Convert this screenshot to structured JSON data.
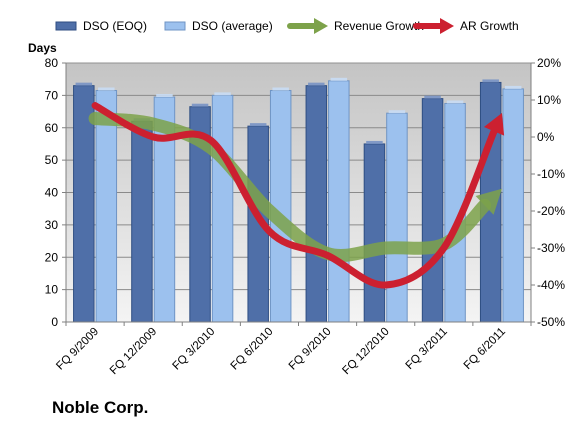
{
  "chart_data": {
    "type": "bar",
    "title": "Noble Corp.",
    "ylabel_left": "Days",
    "ylim_left": [
      0,
      80
    ],
    "yticks_left": [
      "0",
      "10",
      "20",
      "30",
      "40",
      "50",
      "60",
      "70",
      "80"
    ],
    "ylim_right": [
      -0.5,
      0.2
    ],
    "yticks_right": [
      "-50%",
      "-40%",
      "-30%",
      "-20%",
      "-10%",
      "0%",
      "10%",
      "20%"
    ],
    "categories": [
      "FQ 9/2009",
      "FQ 12/2009",
      "FQ 3/2010",
      "FQ 6/2010",
      "FQ 9/2010",
      "FQ 12/2010",
      "FQ 3/2011",
      "FQ 6/2011"
    ],
    "legend_position": "top",
    "series": [
      {
        "name": "DSO (EOQ)",
        "kind": "bar",
        "axis": "left",
        "color": "#4f6fa8",
        "values": [
          73,
          62,
          66.5,
          60.5,
          73,
          55,
          69,
          74
        ]
      },
      {
        "name": "DSO (average)",
        "kind": "bar",
        "axis": "left",
        "color": "#9cc1ee",
        "values": [
          71.5,
          69.5,
          70,
          71.5,
          74.5,
          64.5,
          67.5,
          72
        ]
      },
      {
        "name": "Revenue Growth",
        "kind": "arrow-line",
        "axis": "right",
        "color": "#7da24a",
        "values": [
          0.05,
          0.035,
          -0.03,
          -0.2,
          -0.315,
          -0.3,
          -0.29,
          -0.14
        ]
      },
      {
        "name": "AR Growth",
        "kind": "arrow-line",
        "axis": "right",
        "color": "#cc2030",
        "values": [
          0.085,
          0,
          -0.01,
          -0.255,
          -0.32,
          -0.4,
          -0.3,
          0.065
        ]
      }
    ]
  }
}
